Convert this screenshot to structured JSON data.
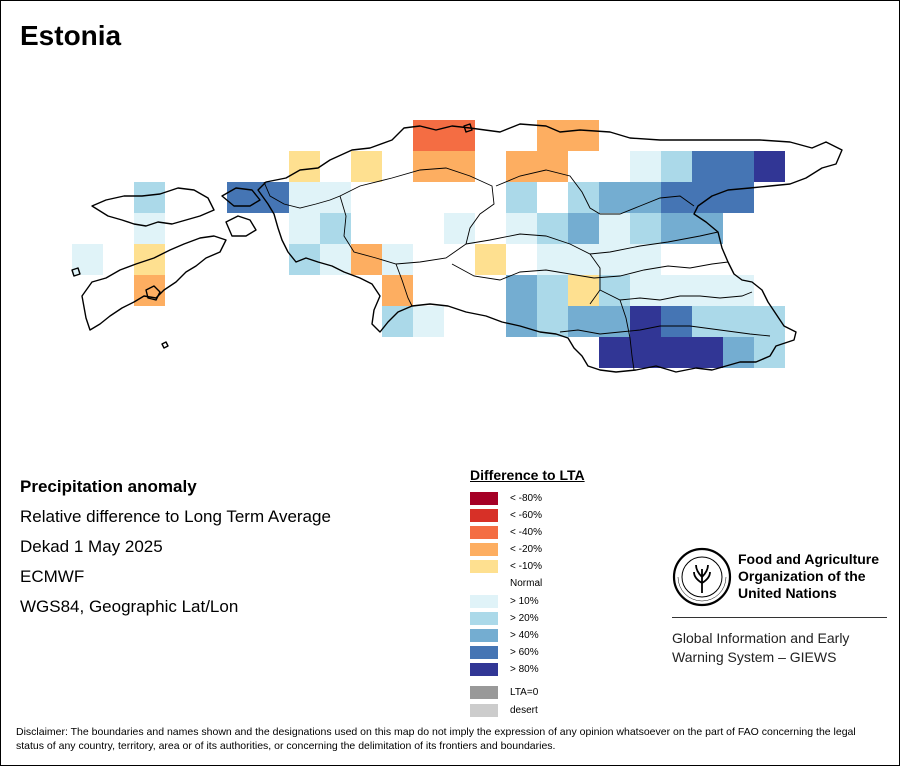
{
  "title": "Estonia",
  "info": {
    "heading": "Precipitation anomaly",
    "line1": "Relative difference to Long Term Average",
    "line2": "Dekad 1 May 2025",
    "line3": "ECMWF",
    "line4": "WGS84, Geographic Lat/Lon"
  },
  "legend": {
    "title": "Difference to LTA",
    "items": [
      {
        "label": "< -80%",
        "color": "#a50026"
      },
      {
        "label": "< -60%",
        "color": "#d73027"
      },
      {
        "label": "< -40%",
        "color": "#f46d43"
      },
      {
        "label": "< -20%",
        "color": "#fdae61"
      },
      {
        "label": "< -10%",
        "color": "#fee090"
      },
      {
        "label": "Normal",
        "color": "#ffffff"
      },
      {
        "label": "> 10%",
        "color": "#e0f3f8"
      },
      {
        "label": "> 20%",
        "color": "#abd9e9"
      },
      {
        "label": "> 40%",
        "color": "#74add1"
      },
      {
        "label": "> 60%",
        "color": "#4575b4"
      },
      {
        "label": "> 80%",
        "color": "#313695"
      },
      {
        "label": "LTA=0",
        "color": "#999999"
      },
      {
        "label": "desert",
        "color": "#cccccc"
      }
    ]
  },
  "organization": {
    "name_line1": "Food and Agriculture",
    "name_line2": "Organization of the",
    "name_line3": "United Nations",
    "logo_text_top": "FAO",
    "logo_text_bottom": "FIAT PANIS",
    "system_line1": "Global Information and Early",
    "system_line2": "Warning System – GIEWS"
  },
  "disclaimer": "Disclaimer: The boundaries and names shown and the designations used on this map do not imply the expression of any opinion whatsoever on the part of FAO concerning the legal status of any country, territory, area or of its authorities, or concerning the delimitation of its frontiers and boundaries.",
  "map_cells": [
    {
      "col": 13,
      "row": 0,
      "cls": 2
    },
    {
      "col": 14,
      "row": 0,
      "cls": 2
    },
    {
      "col": 17,
      "row": 0,
      "cls": 3
    },
    {
      "col": 18,
      "row": 0,
      "cls": 3
    },
    {
      "col": 9,
      "row": 1,
      "cls": 4
    },
    {
      "col": 11,
      "row": 1,
      "cls": 4
    },
    {
      "col": 13,
      "row": 1,
      "cls": 3
    },
    {
      "col": 14,
      "row": 1,
      "cls": 3
    },
    {
      "col": 16,
      "row": 1,
      "cls": 3
    },
    {
      "col": 17,
      "row": 1,
      "cls": 3
    },
    {
      "col": 20,
      "row": 1,
      "cls": 6
    },
    {
      "col": 21,
      "row": 1,
      "cls": 7
    },
    {
      "col": 22,
      "row": 1,
      "cls": 9
    },
    {
      "col": 23,
      "row": 1,
      "cls": 9
    },
    {
      "col": 24,
      "row": 1,
      "cls": 10
    },
    {
      "col": 4,
      "row": 2,
      "cls": 7
    },
    {
      "col": 7,
      "row": 2,
      "cls": 9
    },
    {
      "col": 8,
      "row": 2,
      "cls": 9
    },
    {
      "col": 9,
      "row": 2,
      "cls": 6
    },
    {
      "col": 10,
      "row": 2,
      "cls": 6
    },
    {
      "col": 16,
      "row": 2,
      "cls": 7
    },
    {
      "col": 18,
      "row": 2,
      "cls": 7
    },
    {
      "col": 19,
      "row": 2,
      "cls": 8
    },
    {
      "col": 20,
      "row": 2,
      "cls": 8
    },
    {
      "col": 21,
      "row": 2,
      "cls": 9
    },
    {
      "col": 22,
      "row": 2,
      "cls": 9
    },
    {
      "col": 23,
      "row": 2,
      "cls": 9
    },
    {
      "col": 4,
      "row": 3,
      "cls": 6
    },
    {
      "col": 9,
      "row": 3,
      "cls": 6
    },
    {
      "col": 10,
      "row": 3,
      "cls": 7
    },
    {
      "col": 14,
      "row": 3,
      "cls": 6
    },
    {
      "col": 16,
      "row": 3,
      "cls": 6
    },
    {
      "col": 17,
      "row": 3,
      "cls": 7
    },
    {
      "col": 18,
      "row": 3,
      "cls": 8
    },
    {
      "col": 19,
      "row": 3,
      "cls": 6
    },
    {
      "col": 20,
      "row": 3,
      "cls": 7
    },
    {
      "col": 21,
      "row": 3,
      "cls": 8
    },
    {
      "col": 22,
      "row": 3,
      "cls": 8
    },
    {
      "col": 2,
      "row": 4,
      "cls": 6
    },
    {
      "col": 4,
      "row": 4,
      "cls": 4
    },
    {
      "col": 9,
      "row": 4,
      "cls": 7
    },
    {
      "col": 10,
      "row": 4,
      "cls": 6
    },
    {
      "col": 11,
      "row": 4,
      "cls": 3
    },
    {
      "col": 12,
      "row": 4,
      "cls": 6
    },
    {
      "col": 15,
      "row": 4,
      "cls": 4
    },
    {
      "col": 17,
      "row": 4,
      "cls": 6
    },
    {
      "col": 18,
      "row": 4,
      "cls": 6
    },
    {
      "col": 19,
      "row": 4,
      "cls": 6
    },
    {
      "col": 20,
      "row": 4,
      "cls": 6
    },
    {
      "col": 4,
      "row": 5,
      "cls": 3
    },
    {
      "col": 12,
      "row": 5,
      "cls": 3
    },
    {
      "col": 16,
      "row": 5,
      "cls": 8
    },
    {
      "col": 17,
      "row": 5,
      "cls": 7
    },
    {
      "col": 18,
      "row": 5,
      "cls": 4
    },
    {
      "col": 19,
      "row": 5,
      "cls": 7
    },
    {
      "col": 20,
      "row": 5,
      "cls": 6
    },
    {
      "col": 21,
      "row": 5,
      "cls": 6
    },
    {
      "col": 22,
      "row": 5,
      "cls": 6
    },
    {
      "col": 23,
      "row": 5,
      "cls": 6
    },
    {
      "col": 12,
      "row": 6,
      "cls": 7
    },
    {
      "col": 13,
      "row": 6,
      "cls": 6
    },
    {
      "col": 16,
      "row": 6,
      "cls": 8
    },
    {
      "col": 17,
      "row": 6,
      "cls": 7
    },
    {
      "col": 18,
      "row": 6,
      "cls": 8
    },
    {
      "col": 19,
      "row": 6,
      "cls": 8
    },
    {
      "col": 20,
      "row": 6,
      "cls": 10
    },
    {
      "col": 21,
      "row": 6,
      "cls": 9
    },
    {
      "col": 22,
      "row": 6,
      "cls": 7
    },
    {
      "col": 23,
      "row": 6,
      "cls": 7
    },
    {
      "col": 24,
      "row": 6,
      "cls": 7
    },
    {
      "col": 19,
      "row": 7,
      "cls": 10
    },
    {
      "col": 20,
      "row": 7,
      "cls": 10
    },
    {
      "col": 21,
      "row": 7,
      "cls": 10
    },
    {
      "col": 22,
      "row": 7,
      "cls": 10
    },
    {
      "col": 23,
      "row": 7,
      "cls": 8
    },
    {
      "col": 24,
      "row": 7,
      "cls": 7
    }
  ]
}
